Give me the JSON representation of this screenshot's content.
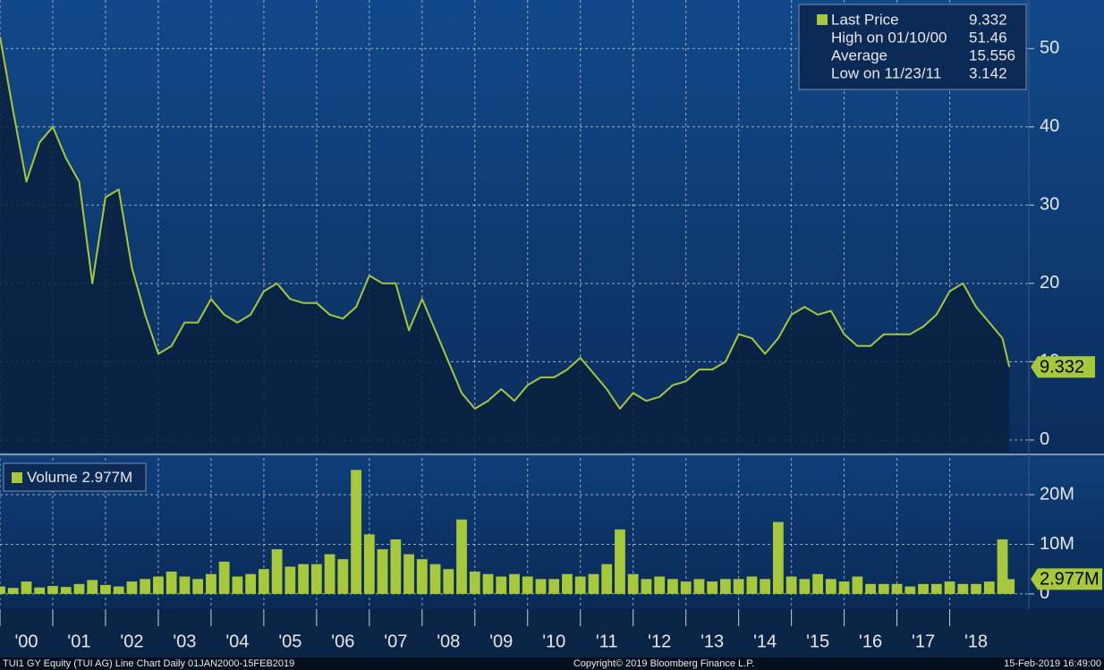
{
  "chart_data": [
    {
      "type": "area",
      "series": [
        {
          "name": "Last Price",
          "color": "#a6c83a",
          "values": [
            51.5,
            42,
            33,
            38,
            40,
            36,
            33,
            20,
            31,
            32,
            22,
            16,
            11,
            12,
            15,
            15,
            18,
            16,
            15,
            16,
            19,
            20,
            18,
            17.5,
            17.5,
            16,
            15.5,
            17,
            21,
            20,
            20,
            14,
            18,
            14,
            10,
            6,
            4,
            5,
            6.5,
            5,
            7,
            8,
            8,
            9,
            10.5,
            8.5,
            6.5,
            4,
            6,
            5,
            5.5,
            7,
            7.5,
            9,
            9,
            10,
            13.5,
            13,
            11,
            13,
            16,
            17,
            16,
            16.5,
            13.5,
            12,
            12,
            13.5,
            13.5,
            13.5,
            14.5,
            16,
            19,
            20,
            17,
            15,
            13,
            9.332
          ]
        }
      ],
      "x": [
        2000,
        2000.25,
        2000.5,
        2000.75,
        2001,
        2001.25,
        2001.5,
        2001.75,
        2002,
        2002.25,
        2002.5,
        2002.75,
        2003,
        2003.25,
        2003.5,
        2003.75,
        2004,
        2004.25,
        2004.5,
        2004.75,
        2005,
        2005.25,
        2005.5,
        2005.75,
        2006,
        2006.25,
        2006.5,
        2006.75,
        2007,
        2007.25,
        2007.5,
        2007.75,
        2008,
        2008.25,
        2008.5,
        2008.75,
        2009,
        2009.25,
        2009.5,
        2009.75,
        2010,
        2010.25,
        2010.5,
        2010.75,
        2011,
        2011.25,
        2011.5,
        2011.75,
        2012,
        2012.25,
        2012.5,
        2012.75,
        2013,
        2013.25,
        2013.5,
        2013.75,
        2014,
        2014.25,
        2014.5,
        2014.75,
        2015,
        2015.25,
        2015.5,
        2015.75,
        2016,
        2016.25,
        2016.5,
        2016.75,
        2017,
        2017.25,
        2017.5,
        2017.75,
        2018,
        2018.25,
        2018.5,
        2018.75,
        2019,
        2019.13
      ],
      "xlim": [
        2000,
        2019.5
      ],
      "xticks": [
        {
          "value": 2000,
          "label": "'00"
        },
        {
          "value": 2001,
          "label": "'01"
        },
        {
          "value": 2002,
          "label": "'02"
        },
        {
          "value": 2003,
          "label": "'03"
        },
        {
          "value": 2004,
          "label": "'04"
        },
        {
          "value": 2005,
          "label": "'05"
        },
        {
          "value": 2006,
          "label": "'06"
        },
        {
          "value": 2007,
          "label": "'07"
        },
        {
          "value": 2008,
          "label": "'08"
        },
        {
          "value": 2009,
          "label": "'09"
        },
        {
          "value": 2010,
          "label": "'10"
        },
        {
          "value": 2011,
          "label": "'11"
        },
        {
          "value": 2012,
          "label": "'12"
        },
        {
          "value": 2013,
          "label": "'13"
        },
        {
          "value": 2014,
          "label": "'14"
        },
        {
          "value": 2015,
          "label": "'15"
        },
        {
          "value": 2016,
          "label": "'16"
        },
        {
          "value": 2017,
          "label": "'17"
        },
        {
          "value": 2018,
          "label": "'18"
        }
      ],
      "ylim": [
        -1.5,
        56.2
      ],
      "yticks": [
        0,
        10,
        20,
        30,
        40,
        50
      ],
      "grid": true,
      "legend": "top-right",
      "last_value_label": "9.332",
      "legend_stats": [
        {
          "label": "High on 01/10/00",
          "value": "51.46"
        },
        {
          "label": "Average",
          "value": "15.556"
        },
        {
          "label": "Low on 11/23/11",
          "value": "3.142"
        }
      ]
    },
    {
      "type": "bar",
      "series": [
        {
          "name": "Volume",
          "color": "#a6c83a",
          "values": [
            1500000,
            1200000,
            2500000,
            1300000,
            1600000,
            1400000,
            2000000,
            2800000,
            1800000,
            1500000,
            2500000,
            3000000,
            3500000,
            4500000,
            3500000,
            3000000,
            4000000,
            6500000,
            3500000,
            4000000,
            5000000,
            9000000,
            5500000,
            6000000,
            6000000,
            8000000,
            7000000,
            25000000,
            12000000,
            9000000,
            11000000,
            8000000,
            7000000,
            6000000,
            5000000,
            15000000,
            4500000,
            4000000,
            3500000,
            4000000,
            3500000,
            3000000,
            3000000,
            4000000,
            3500000,
            4000000,
            6000000,
            13000000,
            4000000,
            3000000,
            3500000,
            3000000,
            2500000,
            3000000,
            2500000,
            3000000,
            3000000,
            3500000,
            3000000,
            14500000,
            3500000,
            3000000,
            4000000,
            3000000,
            2500000,
            3500000,
            2000000,
            2000000,
            2000000,
            1500000,
            2000000,
            2000000,
            2500000,
            2000000,
            2000000,
            2500000,
            11000000,
            2977000
          ],
          "value_labels": [
            null,
            null,
            null,
            null,
            null,
            null,
            null,
            null,
            null,
            null,
            null,
            null,
            null,
            null,
            null,
            null,
            null,
            null,
            null,
            null,
            null,
            null,
            null,
            null,
            null,
            null,
            null,
            null,
            null,
            null,
            null,
            null,
            null,
            null,
            null,
            null,
            null,
            null,
            null,
            null,
            null,
            null,
            null,
            null,
            null,
            null,
            null,
            null,
            null,
            null,
            null,
            null,
            null,
            null,
            null,
            null,
            null,
            null,
            null,
            null,
            null,
            null,
            null,
            null,
            null,
            null,
            null,
            null,
            null,
            null,
            null,
            null,
            null,
            null,
            null,
            null,
            null,
            "2.977M"
          ]
        }
      ],
      "x": [
        2000,
        2000.25,
        2000.5,
        2000.75,
        2001,
        2001.25,
        2001.5,
        2001.75,
        2002,
        2002.25,
        2002.5,
        2002.75,
        2003,
        2003.25,
        2003.5,
        2003.75,
        2004,
        2004.25,
        2004.5,
        2004.75,
        2005,
        2005.25,
        2005.5,
        2005.75,
        2006,
        2006.25,
        2006.5,
        2006.75,
        2007,
        2007.25,
        2007.5,
        2007.75,
        2008,
        2008.25,
        2008.5,
        2008.75,
        2009,
        2009.25,
        2009.5,
        2009.75,
        2010,
        2010.25,
        2010.5,
        2010.75,
        2011,
        2011.25,
        2011.5,
        2011.75,
        2012,
        2012.25,
        2012.5,
        2012.75,
        2013,
        2013.25,
        2013.5,
        2013.75,
        2014,
        2014.25,
        2014.5,
        2014.75,
        2015,
        2015.25,
        2015.5,
        2015.75,
        2016,
        2016.25,
        2016.5,
        2016.75,
        2017,
        2017.25,
        2017.5,
        2017.75,
        2018,
        2018.25,
        2018.5,
        2018.75,
        2019,
        2019.13
      ],
      "xlim": [
        2000,
        2019.5
      ],
      "ylim": [
        -2900000,
        27400000
      ],
      "yticks": [
        0,
        {
          "value": 10000000,
          "label": "10M"
        },
        {
          "value": 20000000,
          "label": "20M"
        }
      ],
      "grid": true,
      "legend": "top-left"
    }
  ],
  "footer": {
    "left": "TUI1 GY Equity (TUI AG) Line Chart  Daily 01JAN2000-15FEB2019",
    "center": "Copyright© 2019 Bloomberg Finance L.P.",
    "right": "15-Feb-2019 16:49:00"
  }
}
